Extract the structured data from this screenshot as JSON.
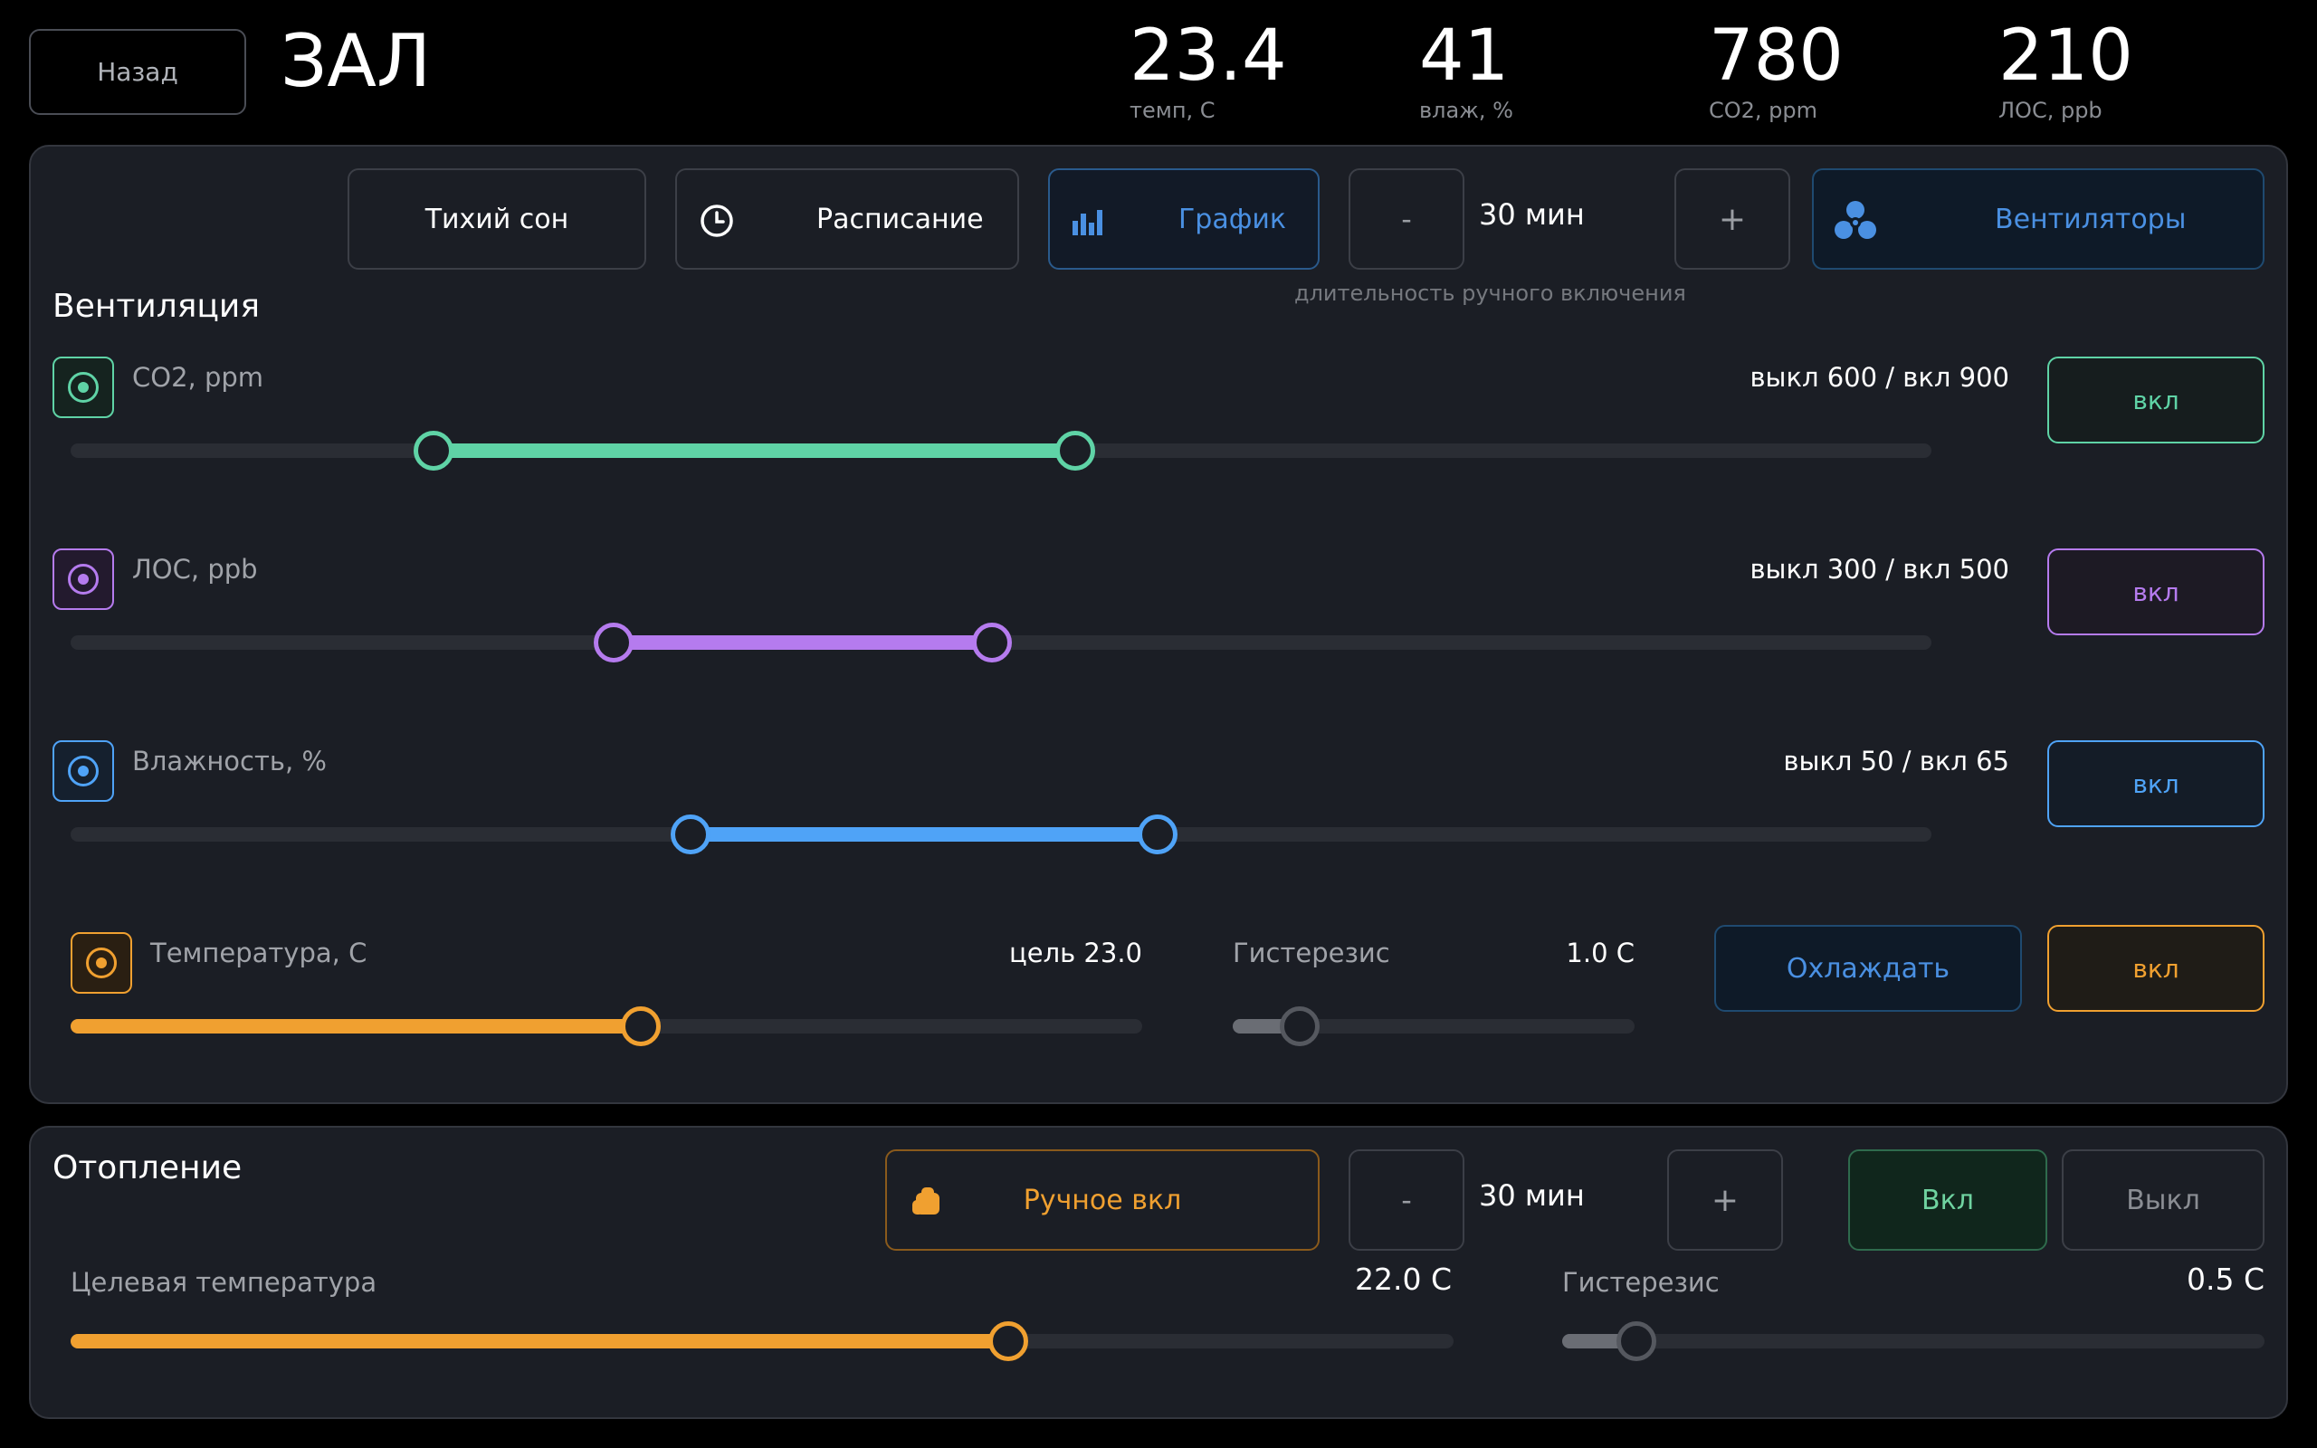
{
  "header": {
    "back_label": "Назад",
    "room_title": "ЗАЛ",
    "metrics": [
      {
        "value": "23.4",
        "label": "темп, С"
      },
      {
        "value": "41",
        "label": "влаж, %"
      },
      {
        "value": "780",
        "label": "CO2, ppm"
      },
      {
        "value": "210",
        "label": "ЛОС, ppb"
      }
    ]
  },
  "ventilation": {
    "title": "Вентиляция",
    "toolbar": {
      "quiet_sleep_label": "Тихий сон",
      "schedule_label": "Расписание",
      "chart_label": "График",
      "minus_label": "-",
      "duration_value": "30 мин",
      "plus_label": "+",
      "duration_caption": "длительность ручного включения",
      "fans_label": "Вентиляторы"
    },
    "sensors": [
      {
        "name": "CO2, ppm",
        "range_text": "выкл 600 / вкл 900",
        "toggle_label": "вкл",
        "color": "#5fd3a6",
        "range_low": 0.195,
        "range_high": 0.54
      },
      {
        "name": "ЛОС, ppb",
        "range_text": "выкл 300 / вкл 500",
        "toggle_label": "вкл",
        "color": "#b57bee",
        "range_low": 0.292,
        "range_high": 0.495
      },
      {
        "name": "Влажность, %",
        "range_text": "выкл 50 / вкл 65",
        "toggle_label": "вкл",
        "color": "#4fa3f7",
        "range_low": 0.333,
        "range_high": 0.584
      }
    ],
    "temperature": {
      "name": "Температура, С",
      "target_text": "цель 23.0",
      "hysteresis_label": "Гистерезис",
      "hysteresis_value": "1.0 С",
      "mode_label": "Охлаждать",
      "toggle_label": "вкл",
      "color": "#f0a030",
      "target_level": 0.532,
      "hysteresis_level": 0.166
    }
  },
  "heating": {
    "title": "Отопление",
    "manual_label": "Ручное вкл",
    "minus_label": "-",
    "duration_value": "30 мин",
    "plus_label": "+",
    "on_label": "Вкл",
    "off_label": "Выкл",
    "target_label": "Целевая температура",
    "target_value": "22.0 С",
    "target_level": 0.678,
    "hysteresis_label": "Гистерезис",
    "hysteresis_value": "0.5 С",
    "hysteresis_level": 0.106
  },
  "colors": {
    "accent_blue": "#4a90e2",
    "heat_orange": "#f0a030",
    "on_green": "#6fd3a0",
    "gray_knob": "#6a6d74"
  }
}
